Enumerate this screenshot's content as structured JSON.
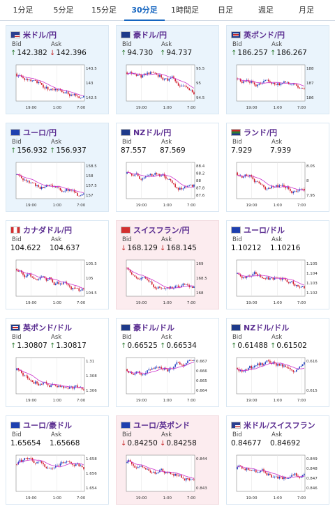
{
  "tabs": [
    {
      "label": "1分足"
    },
    {
      "label": "5分足"
    },
    {
      "label": "15分足"
    },
    {
      "label": "30分足"
    },
    {
      "label": "1時間足"
    },
    {
      "label": "日足"
    },
    {
      "label": "週足"
    },
    {
      "label": "月足"
    }
  ],
  "active_tab_index": 3,
  "labels": {
    "bid": "Bid",
    "ask": "Ask"
  },
  "pairs": [
    {
      "name": "米ドル/円",
      "bid": "142.382",
      "ask": "142.396",
      "bid_dir": "up",
      "ask_dir": "down",
      "flag": "us",
      "y_ticks": [
        "143.5",
        "143",
        "142.5"
      ]
    },
    {
      "name": "豪ドル/円",
      "bid": "94.730",
      "ask": "94.737",
      "bid_dir": "up",
      "ask_dir": "up",
      "flag": "au",
      "y_ticks": [
        "95.5",
        "95",
        "94.5"
      ]
    },
    {
      "name": "英ポンド/円",
      "bid": "186.257",
      "ask": "186.267",
      "bid_dir": "up",
      "ask_dir": "up",
      "flag": "gb",
      "y_ticks": [
        "188",
        "187",
        "186"
      ]
    },
    {
      "name": "ユーロ/円",
      "bid": "156.932",
      "ask": "156.937",
      "bid_dir": "up",
      "ask_dir": "up",
      "flag": "eu",
      "y_ticks": [
        "158.5",
        "158",
        "157.5",
        "157"
      ]
    },
    {
      "name": "NZドル/円",
      "bid": "87.557",
      "ask": "87.569",
      "bid_dir": "",
      "ask_dir": "",
      "flag": "nz",
      "y_ticks": [
        "88.4",
        "88.2",
        "88",
        "87.8",
        "87.6"
      ]
    },
    {
      "name": "ランド/円",
      "bid": "7.929",
      "ask": "7.939",
      "bid_dir": "",
      "ask_dir": "",
      "flag": "za",
      "y_ticks": [
        "8.05",
        "8",
        "7.95"
      ]
    },
    {
      "name": "カナダドル/円",
      "bid": "104.622",
      "ask": "104.637",
      "bid_dir": "",
      "ask_dir": "",
      "flag": "ca",
      "y_ticks": [
        "105.5",
        "105",
        "104.5"
      ]
    },
    {
      "name": "スイスフラン/円",
      "bid": "168.129",
      "ask": "168.145",
      "bid_dir": "down",
      "ask_dir": "down",
      "flag": "ch",
      "y_ticks": [
        "169",
        "168.5",
        "168"
      ]
    },
    {
      "name": "ユーロ/ドル",
      "bid": "1.10212",
      "ask": "1.10216",
      "bid_dir": "",
      "ask_dir": "",
      "flag": "eu",
      "y_ticks": [
        "1.105",
        "1.104",
        "1.103",
        "1.102"
      ]
    },
    {
      "name": "英ポンド/ドル",
      "bid": "1.30807",
      "ask": "1.30817",
      "bid_dir": "up",
      "ask_dir": "up",
      "flag": "gb",
      "y_ticks": [
        "1.31",
        "1.308",
        "1.306"
      ]
    },
    {
      "name": "豪ドル/ドル",
      "bid": "0.66525",
      "ask": "0.66534",
      "bid_dir": "up",
      "ask_dir": "up",
      "flag": "au",
      "y_ticks": [
        "0.667",
        "0.666",
        "0.665",
        "0.664"
      ]
    },
    {
      "name": "NZドル/ドル",
      "bid": "0.61488",
      "ask": "0.61502",
      "bid_dir": "up",
      "ask_dir": "up",
      "flag": "nz",
      "y_ticks": [
        "0.616",
        "0.615"
      ]
    },
    {
      "name": "ユーロ/豪ドル",
      "bid": "1.65654",
      "ask": "1.65668",
      "bid_dir": "",
      "ask_dir": "",
      "flag": "eu",
      "y_ticks": [
        "1.658",
        "1.656",
        "1.654"
      ]
    },
    {
      "name": "ユーロ/英ポンド",
      "bid": "0.84250",
      "ask": "0.84258",
      "bid_dir": "down",
      "ask_dir": "down",
      "flag": "eu",
      "y_ticks": [
        "0.844",
        "0.843"
      ]
    },
    {
      "name": "米ドル/スイスフラン",
      "bid": "0.84677",
      "ask": "0.84692",
      "bid_dir": "",
      "ask_dir": "",
      "flag": "us",
      "y_ticks": [
        "0.849",
        "0.848",
        "0.847",
        "0.846"
      ]
    }
  ],
  "x_ticks": [
    "19:00",
    "1:00",
    "7:00"
  ],
  "colors": {
    "up_candle": "#1f3fbf",
    "down_candle": "#d11a2a",
    "ma_line": "#cc33cc",
    "title": "#5b2e91",
    "up_arrow": "#2e7d32",
    "down_arrow": "#c62828"
  }
}
